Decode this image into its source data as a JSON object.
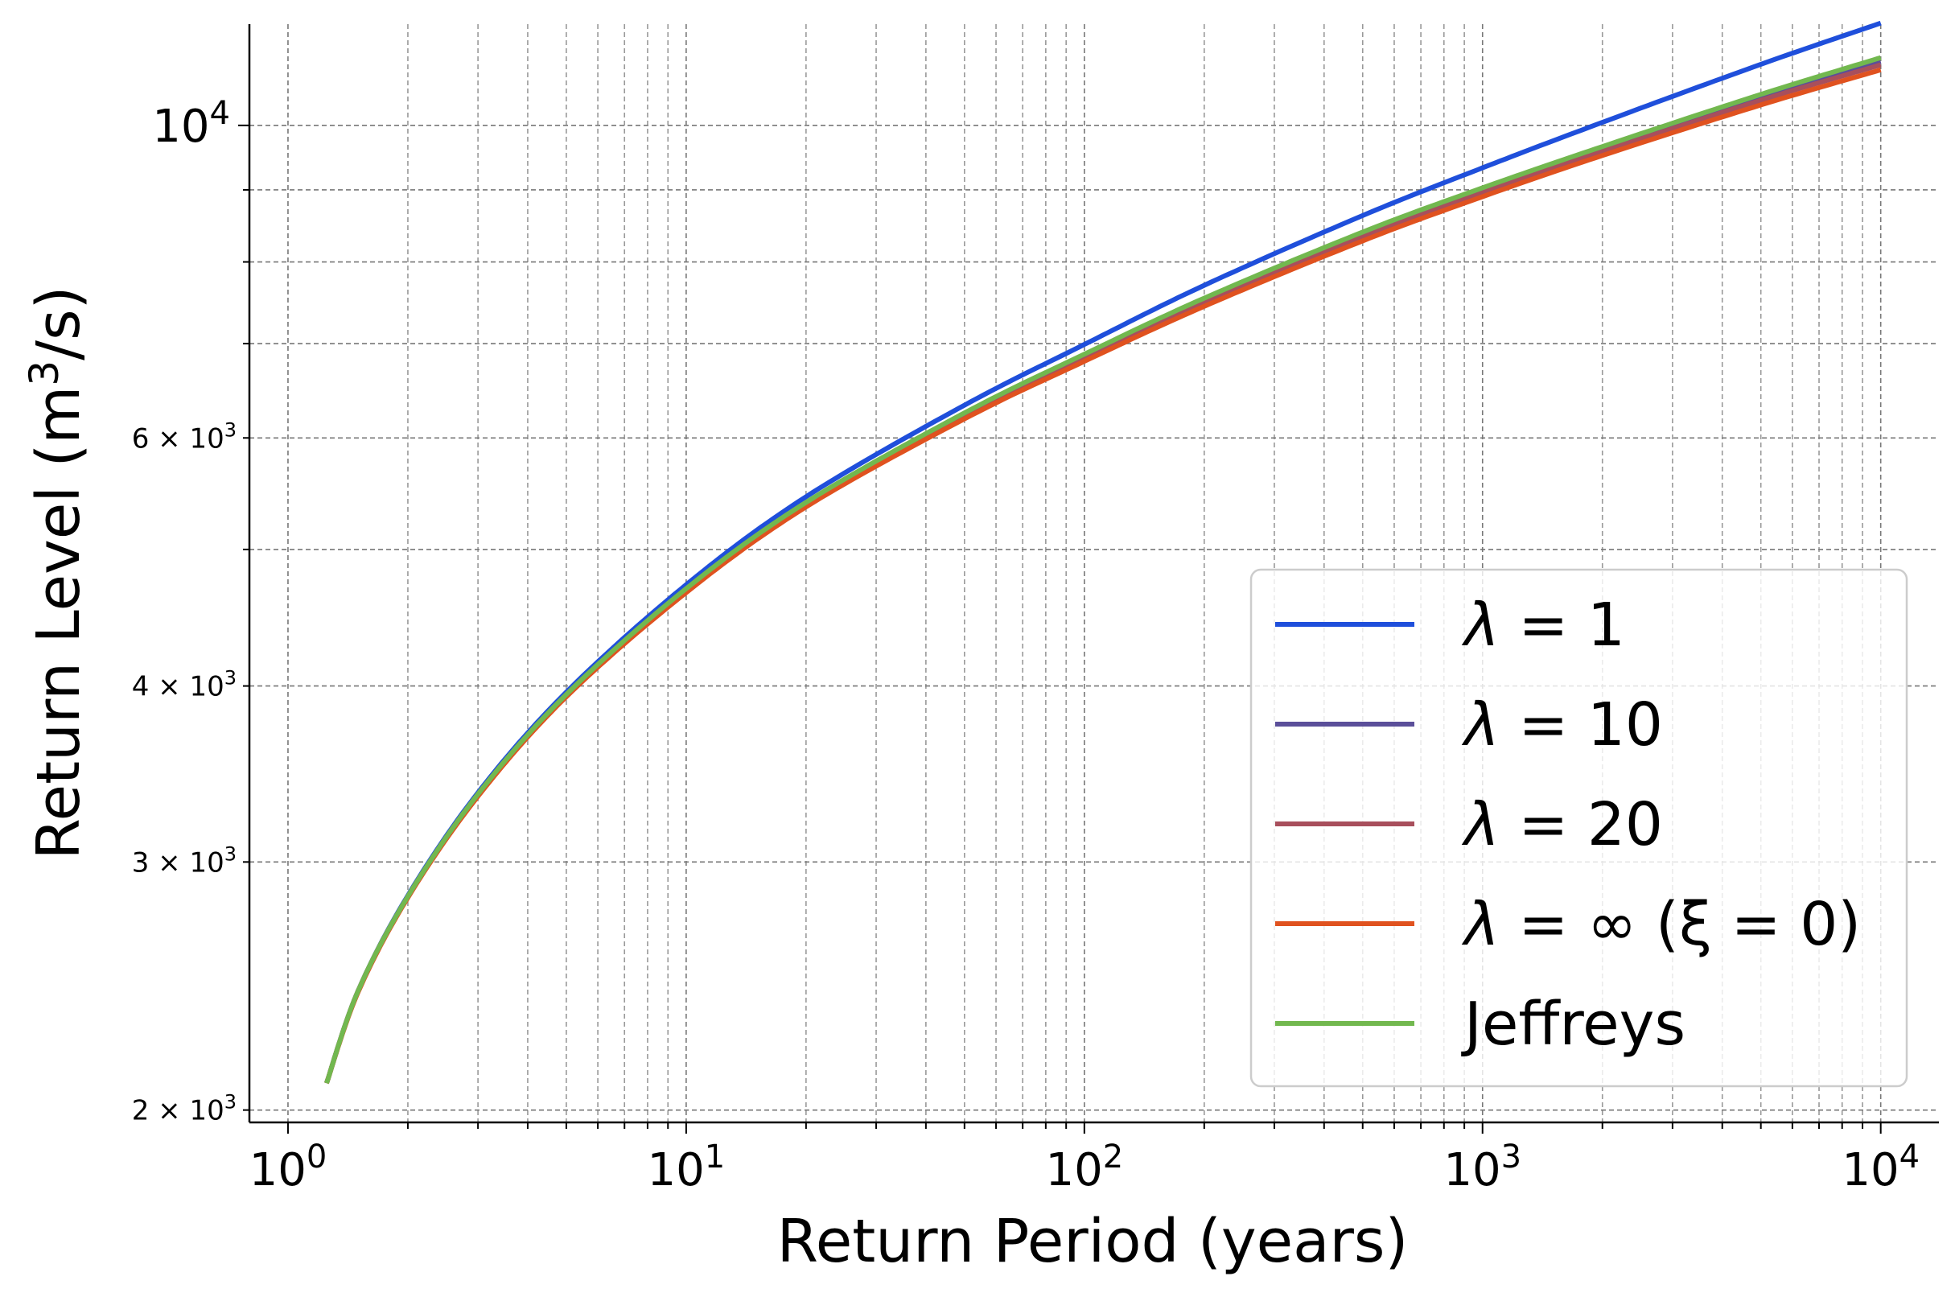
{
  "chart_data": {
    "type": "line",
    "xlabel": "Return Period (years)",
    "ylabel_main": "Return Level (m",
    "ylabel_sup": "3",
    "ylabel_tail": "/s)",
    "xscale": "log",
    "yscale": "log",
    "xlim": [
      0.8,
      14000
    ],
    "ylim": [
      1960,
      11800
    ],
    "grid": "both-major-minor-dashed",
    "legend_location": "lower right",
    "x_ticks": [
      {
        "value": 1,
        "base": "10",
        "exp": "0"
      },
      {
        "value": 10,
        "base": "10",
        "exp": "1"
      },
      {
        "value": 100,
        "base": "10",
        "exp": "2"
      },
      {
        "value": 1000,
        "base": "10",
        "exp": "3"
      },
      {
        "value": 10000,
        "base": "10",
        "exp": "4"
      }
    ],
    "y_ticks": [
      {
        "value": 10000,
        "kind": "major",
        "base": "10",
        "exp": "4"
      },
      {
        "value": 2000,
        "kind": "minor",
        "mant": "2",
        "base": "10",
        "exp": "3"
      },
      {
        "value": 3000,
        "kind": "minor",
        "mant": "3",
        "base": "10",
        "exp": "3"
      },
      {
        "value": 4000,
        "kind": "minor",
        "mant": "4",
        "base": "10",
        "exp": "3"
      },
      {
        "value": 6000,
        "kind": "minor",
        "mant": "6",
        "base": "10",
        "exp": "3"
      }
    ],
    "x": [
      1.25,
      1.5,
      2,
      3,
      5,
      10,
      20,
      50,
      100,
      200,
      500,
      1000,
      2000,
      5000,
      10000
    ],
    "series": [
      {
        "name": "λ = 1",
        "name_lhs": "λ",
        "name_rhs": "1",
        "color": "#1f4fdb",
        "values": [
          2090,
          2430,
          2840,
          3360,
          3960,
          4720,
          5450,
          6330,
          6990,
          7700,
          8630,
          9330,
          10050,
          11050,
          11820
        ]
      },
      {
        "name": "λ = 10",
        "name_lhs": "λ",
        "name_rhs": "10",
        "color": "#5b4f9a",
        "values": [
          2090,
          2430,
          2835,
          3350,
          3940,
          4680,
          5385,
          6230,
          6850,
          7500,
          8350,
          8980,
          9610,
          10460,
          11100
        ]
      },
      {
        "name": "λ = 20",
        "name_lhs": "λ",
        "name_rhs": "20",
        "color": "#a84f5c",
        "values": [
          2090,
          2430,
          2835,
          3350,
          3938,
          4678,
          5380,
          6222,
          6838,
          7485,
          8330,
          8955,
          9580,
          10420,
          11040
        ]
      },
      {
        "name": "λ = ∞ (ξ = 0)",
        "name_lhs": "λ",
        "name_rhs": "∞ (ξ = 0)",
        "color": "#e0521f",
        "values": [
          2090,
          2425,
          2830,
          3340,
          3930,
          4660,
          5360,
          6190,
          6800,
          7440,
          8280,
          8900,
          9520,
          10340,
          10950
        ]
      },
      {
        "name": "Jeffreys",
        "color": "#72b84f",
        "values": [
          2090,
          2430,
          2836,
          3352,
          3945,
          4690,
          5400,
          6250,
          6880,
          7540,
          8400,
          9030,
          9660,
          10520,
          11170
        ]
      }
    ]
  }
}
